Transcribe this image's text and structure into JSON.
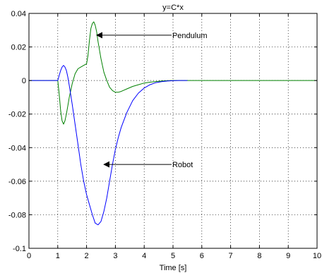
{
  "chart_data": {
    "type": "line",
    "title": "y=C*x",
    "xlabel": "Time [s]",
    "ylabel": "",
    "xlim": [
      0,
      10
    ],
    "ylim": [
      -0.1,
      0.04
    ],
    "xticks": [
      0,
      1,
      2,
      3,
      4,
      5,
      6,
      7,
      8,
      9,
      10
    ],
    "xtick_labels": [
      "0",
      "1",
      "2",
      "3",
      "4",
      "5",
      "6",
      "7",
      "8",
      "9",
      "10"
    ],
    "yticks": [
      -0.1,
      -0.08,
      -0.06,
      -0.04,
      -0.02,
      0,
      0.02,
      0.04
    ],
    "ytick_labels": [
      "-0.1",
      "-0.08",
      "-0.06",
      "-0.04",
      "-0.02",
      "0",
      "0.02",
      "0.04"
    ],
    "grid": true,
    "colors": {
      "blue_series": "#0000ff",
      "green_series": "#008000",
      "axes": "#000000",
      "grid": "#000000"
    },
    "series": [
      {
        "name": "",
        "color": "#008000",
        "x": [
          0,
          1.0,
          1.05,
          1.1,
          1.15,
          1.2,
          1.25,
          1.3,
          1.35,
          1.4,
          1.45,
          1.5,
          1.6,
          1.7,
          1.8,
          1.9,
          2.0,
          2.05,
          2.1,
          2.15,
          2.2,
          2.25,
          2.3,
          2.35,
          2.4,
          2.5,
          2.6,
          2.7,
          2.8,
          2.9,
          3.0,
          3.1,
          3.2,
          3.4,
          3.6,
          3.8,
          4.0,
          4.2,
          4.4,
          4.6,
          4.8,
          5.0,
          5.5,
          6.0,
          7.0,
          8.0,
          9.0,
          10.0
        ],
        "y": [
          0,
          0,
          -0.008,
          -0.018,
          -0.024,
          -0.026,
          -0.024,
          -0.02,
          -0.015,
          -0.01,
          -0.006,
          -0.002,
          0.004,
          0.007,
          0.008,
          0.009,
          0.01,
          0.015,
          0.024,
          0.031,
          0.034,
          0.035,
          0.033,
          0.029,
          0.023,
          0.013,
          0.005,
          0.0,
          -0.004,
          -0.006,
          -0.007,
          -0.007,
          -0.0065,
          -0.005,
          -0.0035,
          -0.0025,
          -0.0015,
          -0.001,
          -0.0006,
          -0.0003,
          -0.0001,
          0,
          0,
          0,
          0,
          0,
          0,
          0
        ]
      },
      {
        "name": "",
        "color": "#0000ff",
        "x": [
          0,
          1.0,
          1.05,
          1.1,
          1.15,
          1.2,
          1.25,
          1.3,
          1.35,
          1.4,
          1.5,
          1.6,
          1.7,
          1.8,
          1.9,
          2.0,
          2.1,
          2.2,
          2.3,
          2.4,
          2.5,
          2.6,
          2.7,
          2.8,
          2.9,
          3.0,
          3.1,
          3.2,
          3.4,
          3.6,
          3.8,
          4.0,
          4.2,
          4.4,
          4.6,
          4.8,
          5.0,
          5.2,
          5.5
        ],
        "y": [
          0,
          0,
          0.003,
          0.006,
          0.008,
          0.009,
          0.008,
          0.006,
          0.002,
          -0.003,
          -0.014,
          -0.026,
          -0.038,
          -0.05,
          -0.06,
          -0.068,
          -0.074,
          -0.08,
          -0.085,
          -0.086,
          -0.084,
          -0.078,
          -0.07,
          -0.06,
          -0.05,
          -0.041,
          -0.034,
          -0.028,
          -0.019,
          -0.012,
          -0.0075,
          -0.0045,
          -0.0025,
          -0.0013,
          -0.0007,
          -0.0003,
          -0.0001,
          0,
          0
        ]
      }
    ],
    "annotations": [
      {
        "text": "Pendulum",
        "arrow_to": {
          "x": 2.35,
          "y": 0.027
        },
        "text_at": {
          "x": 4.95,
          "y": 0.027
        }
      },
      {
        "text": "Robot",
        "arrow_to": {
          "x": 2.6,
          "y": -0.05
        },
        "text_at": {
          "x": 4.95,
          "y": -0.05
        }
      }
    ]
  }
}
